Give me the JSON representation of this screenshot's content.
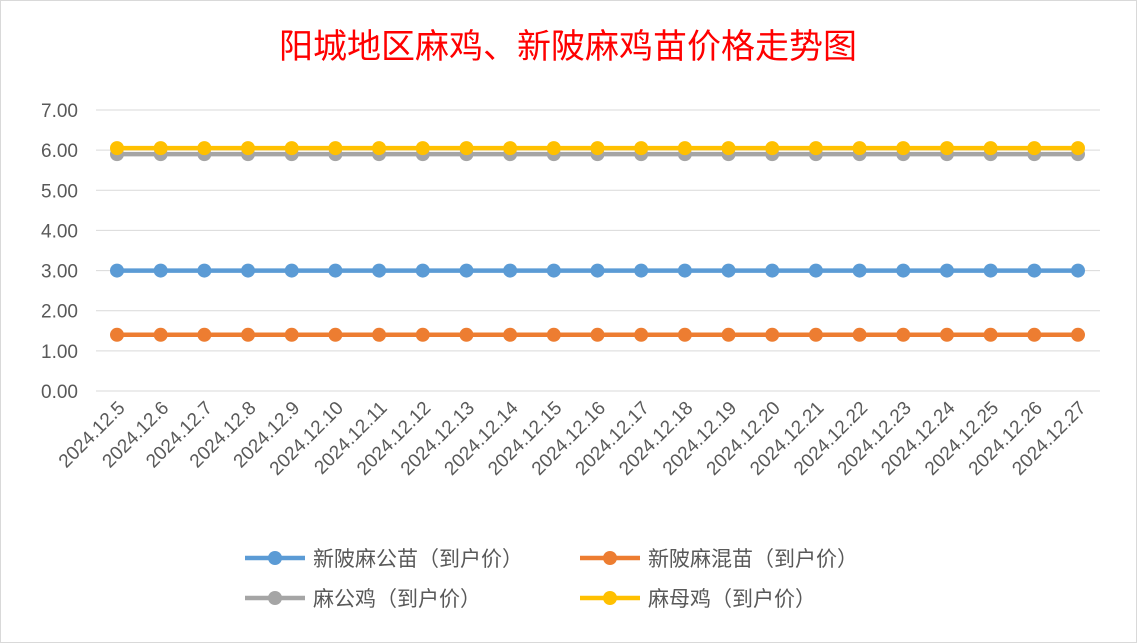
{
  "chart_data": {
    "type": "line",
    "title": "阳城地区麻鸡、新陂麻鸡苗价格走势图",
    "categories": [
      "2024.12.5",
      "2024.12.6",
      "2024.12.7",
      "2024.12.8",
      "2024.12.9",
      "2024.12.10",
      "2024.12.11",
      "2024.12.12",
      "2024.12.13",
      "2024.12.14",
      "2024.12.15",
      "2024.12.16",
      "2024.12.17",
      "2024.12.18",
      "2024.12.19",
      "2024.12.20",
      "2024.12.21",
      "2024.12.22",
      "2024.12.23",
      "2024.12.24",
      "2024.12.25",
      "2024.12.26",
      "2024.12.27"
    ],
    "ylim": [
      0,
      7
    ],
    "ytick_step": 1,
    "ytick_format": "0.00",
    "grid": true,
    "legend_position": "bottom",
    "series": [
      {
        "name": "新陂麻公苗（到户价）",
        "color": "#5b9bd5",
        "values": [
          3,
          3,
          3,
          3,
          3,
          3,
          3,
          3,
          3,
          3,
          3,
          3,
          3,
          3,
          3,
          3,
          3,
          3,
          3,
          3,
          3,
          3,
          3
        ]
      },
      {
        "name": "新陂麻混苗（到户价）",
        "color": "#ed7d31",
        "values": [
          1.4,
          1.4,
          1.4,
          1.4,
          1.4,
          1.4,
          1.4,
          1.4,
          1.4,
          1.4,
          1.4,
          1.4,
          1.4,
          1.4,
          1.4,
          1.4,
          1.4,
          1.4,
          1.4,
          1.4,
          1.4,
          1.4,
          1.4
        ]
      },
      {
        "name": "麻公鸡（到户价）",
        "color": "#a5a5a5",
        "values": [
          5.9,
          5.9,
          5.9,
          5.9,
          5.9,
          5.9,
          5.9,
          5.9,
          5.9,
          5.9,
          5.9,
          5.9,
          5.9,
          5.9,
          5.9,
          5.9,
          5.9,
          5.9,
          5.9,
          5.9,
          5.9,
          5.9,
          5.9
        ]
      },
      {
        "name": "麻母鸡（到户价）",
        "color": "#ffc000",
        "values": [
          6.05,
          6.05,
          6.05,
          6.05,
          6.05,
          6.05,
          6.05,
          6.05,
          6.05,
          6.05,
          6.05,
          6.05,
          6.05,
          6.05,
          6.05,
          6.05,
          6.05,
          6.05,
          6.05,
          6.05,
          6.05,
          6.05,
          6.05
        ]
      }
    ]
  }
}
